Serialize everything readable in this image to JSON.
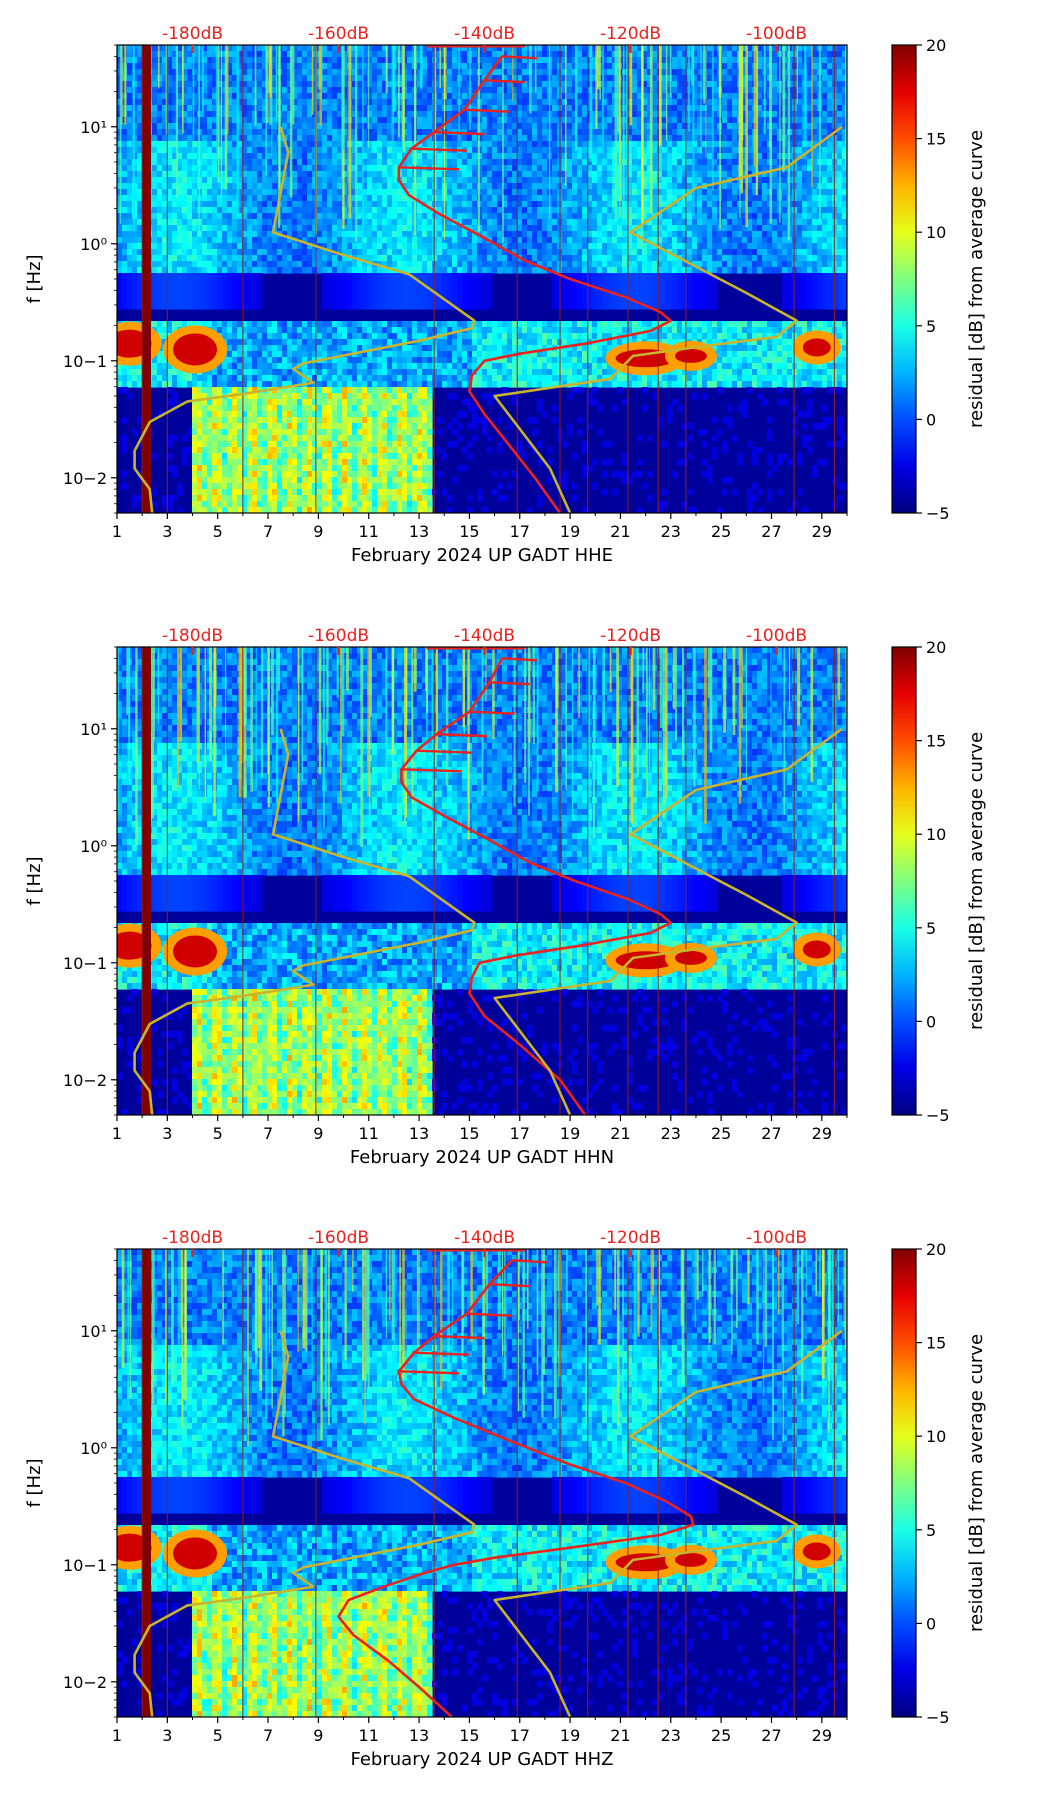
{
  "chart_data": [
    {
      "type": "heatmap",
      "title": "",
      "xlabel": "February 2024 UP GADT  HHE",
      "ylabel": "f [Hz]",
      "x_ticks": [
        1,
        3,
        5,
        7,
        9,
        11,
        13,
        15,
        17,
        19,
        21,
        23,
        25,
        27,
        29
      ],
      "x_range": [
        1,
        30
      ],
      "y_scale": "log",
      "y_range": [
        0.005,
        50
      ],
      "y_ticks": [
        {
          "value": 0.01,
          "label": "10−2"
        },
        {
          "value": 0.1,
          "label": "10−1"
        },
        {
          "value": 1,
          "label": "10⁰"
        },
        {
          "value": 10,
          "label": "10¹"
        }
      ],
      "top_axis_labels": [
        "-180dB",
        "-160dB",
        "-140dB",
        "-120dB",
        "-100dB"
      ],
      "top_axis_positions": [
        4,
        9.8,
        15.6,
        21.4,
        27.2
      ],
      "colorbar": {
        "label": "residual [dB] from average curve",
        "ticks": [
          20,
          15,
          10,
          5,
          0,
          -5
        ],
        "min": -5,
        "max": 20
      },
      "series": [
        {
          "name": "average PSD (red)",
          "color": "#e8231f",
          "points": [
            [
              16.3,
              40
            ],
            [
              15.6,
              25
            ],
            [
              14.8,
              14
            ],
            [
              13.6,
              9
            ],
            [
              12.7,
              6.5
            ],
            [
              12.2,
              4.5
            ],
            [
              12.2,
              3.5
            ],
            [
              12.6,
              2.6
            ],
            [
              13.8,
              1.8
            ],
            [
              15.5,
              1.15
            ],
            [
              17.2,
              0.72
            ],
            [
              19.0,
              0.5
            ],
            [
              21.2,
              0.35
            ],
            [
              22.6,
              0.26
            ],
            [
              23.0,
              0.22
            ],
            [
              22.2,
              0.18
            ],
            [
              19.6,
              0.14
            ],
            [
              17.0,
              0.115
            ],
            [
              15.6,
              0.1
            ],
            [
              15.1,
              0.075
            ],
            [
              15.0,
              0.055
            ],
            [
              15.6,
              0.035
            ],
            [
              16.5,
              0.02
            ],
            [
              17.6,
              0.01
            ],
            [
              18.6,
              0.005
            ]
          ]
        },
        {
          "name": "noise model (yellow)",
          "color": "#c8b42e",
          "points": [
            [
              7.5,
              10
            ],
            [
              7.8,
              6
            ],
            [
              7.2,
              1.25
            ],
            [
              10,
              0.8
            ],
            [
              12.6,
              0.55
            ],
            [
              15.2,
              0.22
            ],
            [
              15.1,
              0.19
            ],
            [
              13.1,
              0.15
            ],
            [
              8.4,
              0.095
            ],
            [
              8,
              0.085
            ],
            [
              8.8,
              0.065
            ],
            [
              6,
              0.052
            ],
            [
              3.8,
              0.045
            ],
            [
              2.3,
              0.03
            ],
            [
              1.7,
              0.017
            ],
            [
              1.7,
              0.012
            ],
            [
              2.3,
              0.008
            ],
            [
              2.4,
              0.005
            ]
          ]
        },
        {
          "name": "noise model right (yellow)",
          "color": "#c8b42e",
          "points": [
            [
              29.8,
              10
            ],
            [
              27.6,
              4.5
            ],
            [
              24.0,
              3.0
            ],
            [
              21.4,
              1.25
            ],
            [
              26.0,
              0.38
            ],
            [
              28.0,
              0.22
            ],
            [
              27.2,
              0.16
            ],
            [
              24.5,
              0.135
            ],
            [
              21.5,
              0.11
            ],
            [
              20.6,
              0.07
            ],
            [
              16.0,
              0.05
            ],
            [
              18.2,
              0.012
            ],
            [
              19.0,
              0.005
            ]
          ]
        }
      ]
    },
    {
      "type": "heatmap",
      "title": "",
      "xlabel": "February 2024 UP GADT  HHN",
      "ylabel": "f [Hz]",
      "x_ticks": [
        1,
        3,
        5,
        7,
        9,
        11,
        13,
        15,
        17,
        19,
        21,
        23,
        25,
        27,
        29
      ],
      "x_range": [
        1,
        30
      ],
      "y_scale": "log",
      "y_range": [
        0.005,
        50
      ],
      "y_ticks": [
        {
          "value": 0.01,
          "label": "10−2"
        },
        {
          "value": 0.1,
          "label": "10−1"
        },
        {
          "value": 1,
          "label": "10⁰"
        },
        {
          "value": 10,
          "label": "10¹"
        }
      ],
      "top_axis_labels": [
        "-180dB",
        "-160dB",
        "-140dB",
        "-120dB",
        "-100dB"
      ],
      "top_axis_positions": [
        4,
        9.8,
        15.6,
        21.4,
        27.2
      ],
      "colorbar": {
        "label": "residual [dB] from average curve",
        "ticks": [
          20,
          15,
          10,
          5,
          0,
          -5
        ],
        "min": -5,
        "max": 20
      },
      "series": [
        {
          "name": "average PSD (red)",
          "color": "#e8231f",
          "points": [
            [
              16.3,
              40
            ],
            [
              15.8,
              25
            ],
            [
              15.0,
              14
            ],
            [
              13.7,
              9
            ],
            [
              12.9,
              6.5
            ],
            [
              12.3,
              4.5
            ],
            [
              12.3,
              3.5
            ],
            [
              12.7,
              2.6
            ],
            [
              14.0,
              1.8
            ],
            [
              15.7,
              1.15
            ],
            [
              17.4,
              0.72
            ],
            [
              19.2,
              0.5
            ],
            [
              21.3,
              0.35
            ],
            [
              22.6,
              0.26
            ],
            [
              23.0,
              0.22
            ],
            [
              22.2,
              0.18
            ],
            [
              19.4,
              0.14
            ],
            [
              16.8,
              0.115
            ],
            [
              15.4,
              0.1
            ],
            [
              15.1,
              0.075
            ],
            [
              15.0,
              0.055
            ],
            [
              15.6,
              0.035
            ],
            [
              17.0,
              0.02
            ],
            [
              18.6,
              0.01
            ],
            [
              19.6,
              0.005
            ]
          ]
        },
        {
          "name": "noise model (yellow)",
          "color": "#c8b42e",
          "points": [
            [
              7.5,
              10
            ],
            [
              7.8,
              6
            ],
            [
              7.2,
              1.25
            ],
            [
              10,
              0.8
            ],
            [
              12.6,
              0.55
            ],
            [
              15.2,
              0.22
            ],
            [
              15.1,
              0.19
            ],
            [
              13.1,
              0.15
            ],
            [
              8.4,
              0.095
            ],
            [
              8,
              0.085
            ],
            [
              8.8,
              0.065
            ],
            [
              6,
              0.052
            ],
            [
              3.8,
              0.045
            ],
            [
              2.3,
              0.03
            ],
            [
              1.7,
              0.017
            ],
            [
              1.7,
              0.012
            ],
            [
              2.3,
              0.008
            ],
            [
              2.4,
              0.005
            ]
          ]
        },
        {
          "name": "noise model right (yellow)",
          "color": "#c8b42e",
          "points": [
            [
              29.8,
              10
            ],
            [
              27.6,
              4.5
            ],
            [
              24.0,
              3.0
            ],
            [
              21.4,
              1.25
            ],
            [
              26.0,
              0.38
            ],
            [
              28.0,
              0.22
            ],
            [
              27.2,
              0.16
            ],
            [
              24.5,
              0.135
            ],
            [
              21.5,
              0.11
            ],
            [
              20.6,
              0.07
            ],
            [
              16.0,
              0.05
            ],
            [
              18.2,
              0.012
            ],
            [
              19.0,
              0.005
            ]
          ]
        }
      ]
    },
    {
      "type": "heatmap",
      "title": "",
      "xlabel": "February 2024 UP GADT  HHZ",
      "ylabel": "f [Hz]",
      "x_ticks": [
        1,
        3,
        5,
        7,
        9,
        11,
        13,
        15,
        17,
        19,
        21,
        23,
        25,
        27,
        29
      ],
      "x_range": [
        1,
        30
      ],
      "y_scale": "log",
      "y_range": [
        0.005,
        50
      ],
      "y_ticks": [
        {
          "value": 0.01,
          "label": "10−2"
        },
        {
          "value": 0.1,
          "label": "10−1"
        },
        {
          "value": 1,
          "label": "10⁰"
        },
        {
          "value": 10,
          "label": "10¹"
        }
      ],
      "top_axis_labels": [
        "-180dB",
        "-160dB",
        "-140dB",
        "-120dB",
        "-100dB"
      ],
      "top_axis_positions": [
        4,
        9.8,
        15.6,
        21.4,
        27.2
      ],
      "colorbar": {
        "label": "residual [dB] from average curve",
        "ticks": [
          20,
          15,
          10,
          5,
          0,
          -5
        ],
        "min": -5,
        "max": 20
      },
      "series": [
        {
          "name": "average PSD (red)",
          "color": "#e8231f",
          "points": [
            [
              16.7,
              40
            ],
            [
              15.8,
              25
            ],
            [
              14.9,
              14
            ],
            [
              13.6,
              9
            ],
            [
              12.8,
              6.5
            ],
            [
              12.2,
              4.5
            ],
            [
              12.3,
              3.5
            ],
            [
              12.8,
              2.6
            ],
            [
              14.4,
              1.8
            ],
            [
              16.6,
              1.15
            ],
            [
              19.0,
              0.72
            ],
            [
              21.2,
              0.5
            ],
            [
              22.8,
              0.35
            ],
            [
              23.8,
              0.26
            ],
            [
              23.9,
              0.22
            ],
            [
              22.6,
              0.18
            ],
            [
              19.0,
              0.14
            ],
            [
              16.0,
              0.115
            ],
            [
              14.4,
              0.1
            ],
            [
              13.2,
              0.085
            ],
            [
              11.6,
              0.065
            ],
            [
              10.2,
              0.05
            ],
            [
              9.8,
              0.036
            ],
            [
              10.4,
              0.025
            ],
            [
              11.8,
              0.015
            ],
            [
              13.0,
              0.009
            ],
            [
              14.3,
              0.005
            ]
          ]
        },
        {
          "name": "noise model (yellow)",
          "color": "#c8b42e",
          "points": [
            [
              7.5,
              10
            ],
            [
              7.8,
              6
            ],
            [
              7.2,
              1.25
            ],
            [
              10,
              0.8
            ],
            [
              12.6,
              0.55
            ],
            [
              15.2,
              0.22
            ],
            [
              15.1,
              0.19
            ],
            [
              13.1,
              0.15
            ],
            [
              8.4,
              0.095
            ],
            [
              8,
              0.085
            ],
            [
              8.8,
              0.065
            ],
            [
              6,
              0.052
            ],
            [
              3.8,
              0.045
            ],
            [
              2.3,
              0.03
            ],
            [
              1.7,
              0.017
            ],
            [
              1.7,
              0.012
            ],
            [
              2.3,
              0.008
            ],
            [
              2.4,
              0.005
            ]
          ]
        },
        {
          "name": "noise model right (yellow)",
          "color": "#c8b42e",
          "points": [
            [
              29.8,
              10
            ],
            [
              27.6,
              4.5
            ],
            [
              24.0,
              3.0
            ],
            [
              21.4,
              1.25
            ],
            [
              26.0,
              0.38
            ],
            [
              28.0,
              0.22
            ],
            [
              27.2,
              0.16
            ],
            [
              24.5,
              0.135
            ],
            [
              21.5,
              0.11
            ],
            [
              20.6,
              0.07
            ],
            [
              16.0,
              0.05
            ],
            [
              18.2,
              0.012
            ],
            [
              19.0,
              0.005
            ]
          ]
        }
      ]
    }
  ],
  "colors": {
    "red_curve": "#e8231f",
    "yellow_curve": "#c8b42e",
    "background_blue": "#000099",
    "db_label": "#e8231f"
  }
}
